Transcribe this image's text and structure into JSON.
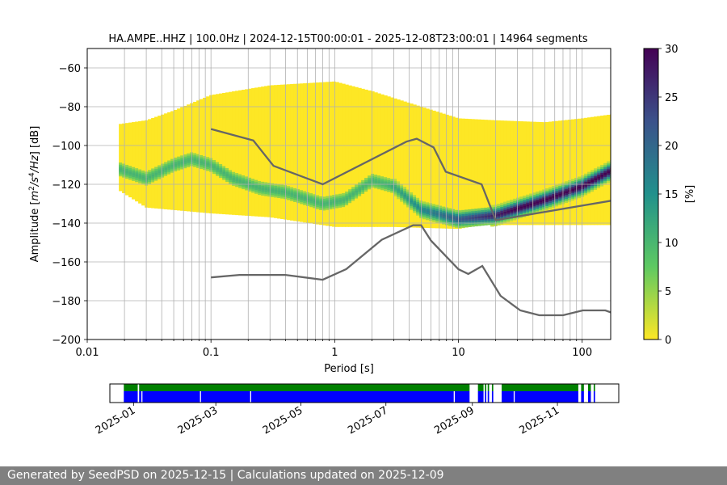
{
  "chart_data": {
    "type": "heatmap",
    "title": "HA.AMPE..HHZ | 100.0Hz | 2024-12-15T00:00:01 - 2025-12-08T23:00:01 | 14964 segments",
    "xlabel": "Period [s]",
    "ylabel": "Amplitude [m²/s⁴/Hz] [dB]",
    "xscale": "log",
    "xlim": [
      0.01,
      170
    ],
    "ylim": [
      -200,
      -50
    ],
    "xticks": [
      {
        "value": 0.01,
        "label": "0.01"
      },
      {
        "value": 0.1,
        "label": "0.1"
      },
      {
        "value": 1,
        "label": "1"
      },
      {
        "value": 10,
        "label": "10"
      },
      {
        "value": 100,
        "label": "100"
      }
    ],
    "yticks": [
      {
        "value": -60,
        "label": "−60"
      },
      {
        "value": -80,
        "label": "−80"
      },
      {
        "value": -100,
        "label": "−100"
      },
      {
        "value": -120,
        "label": "−120"
      },
      {
        "value": -140,
        "label": "−140"
      },
      {
        "value": -160,
        "label": "−160"
      },
      {
        "value": -180,
        "label": "−180"
      },
      {
        "value": -200,
        "label": "−200"
      }
    ],
    "grid": true,
    "heatmap": {
      "period_range": [
        0.018,
        170
      ],
      "band_top_db": [
        [
          0.018,
          -89
        ],
        [
          0.03,
          -87
        ],
        [
          0.05,
          -82
        ],
        [
          0.1,
          -74
        ],
        [
          0.3,
          -69
        ],
        [
          1,
          -67
        ],
        [
          2,
          -72
        ],
        [
          5,
          -80
        ],
        [
          10,
          -86
        ],
        [
          20,
          -87
        ],
        [
          50,
          -88
        ],
        [
          100,
          -86
        ],
        [
          170,
          -84
        ]
      ],
      "band_bottom_db": [
        [
          0.018,
          -123
        ],
        [
          0.03,
          -132
        ],
        [
          0.1,
          -135
        ],
        [
          0.3,
          -137
        ],
        [
          1,
          -142
        ],
        [
          3,
          -142
        ],
        [
          10,
          -143
        ],
        [
          15,
          -141
        ]
      ],
      "mode_db": [
        [
          0.018,
          -112
        ],
        [
          0.03,
          -117
        ],
        [
          0.05,
          -110
        ],
        [
          0.07,
          -107
        ],
        [
          0.1,
          -110
        ],
        [
          0.15,
          -117
        ],
        [
          0.25,
          -122
        ],
        [
          0.4,
          -124
        ],
        [
          0.8,
          -130
        ],
        [
          1.2,
          -128
        ],
        [
          2,
          -118
        ],
        [
          3,
          -121
        ],
        [
          5,
          -133
        ],
        [
          10,
          -138
        ],
        [
          20,
          -136
        ],
        [
          50,
          -128
        ],
        [
          100,
          -121
        ],
        [
          170,
          -113
        ]
      ]
    },
    "noise_models": [
      {
        "name": "NHNM",
        "points": [
          [
            0.1,
            -91.5
          ],
          [
            0.22,
            -97.4
          ],
          [
            0.32,
            -110.5
          ],
          [
            0.8,
            -120
          ],
          [
            3.8,
            -98
          ],
          [
            4.6,
            -96.5
          ],
          [
            6.3,
            -101
          ],
          [
            7.9,
            -113.5
          ],
          [
            15.4,
            -120
          ],
          [
            20,
            -138.5
          ],
          [
            170,
            -128.5
          ]
        ]
      },
      {
        "name": "NLNM",
        "points": [
          [
            0.1,
            -168
          ],
          [
            0.17,
            -166.7
          ],
          [
            0.4,
            -166.7
          ],
          [
            0.8,
            -169.2
          ],
          [
            1.24,
            -163.7
          ],
          [
            2.4,
            -148.6
          ],
          [
            4.3,
            -141.1
          ],
          [
            5,
            -141.1
          ],
          [
            6,
            -149
          ],
          [
            10,
            -163.8
          ],
          [
            12,
            -166.2
          ],
          [
            15.6,
            -162.1
          ],
          [
            21.9,
            -177.5
          ],
          [
            31.6,
            -185
          ],
          [
            45,
            -187.5
          ],
          [
            70,
            -187.5
          ],
          [
            101,
            -185
          ],
          [
            154,
            -185
          ],
          [
            170,
            -186
          ]
        ]
      }
    ],
    "colorbar": {
      "label": "[%]",
      "range": [
        0,
        30
      ],
      "ticks": [
        "0",
        "5",
        "10",
        "15",
        "20",
        "25",
        "30"
      ],
      "colors": [
        "#fde725",
        "#5ec962",
        "#21918c",
        "#3b528b",
        "#440154"
      ]
    },
    "availability": {
      "date_range": [
        "2024-12-15",
        "2025-12-15"
      ],
      "data_color": "#0000ff",
      "psd_color": "#008000",
      "segments": [
        [
          "2024-12-25",
          "2025-01-04"
        ],
        [
          "2025-01-05",
          "2025-08-30"
        ],
        [
          "2025-09-05",
          "2025-09-09"
        ],
        [
          "2025-09-10",
          "2025-09-11"
        ],
        [
          "2025-09-12",
          "2025-09-13"
        ],
        [
          "2025-09-15",
          "2025-09-16"
        ],
        [
          "2025-09-22",
          "2025-11-16"
        ],
        [
          "2025-11-18",
          "2025-11-20"
        ],
        [
          "2025-11-23",
          "2025-11-25"
        ],
        [
          "2025-11-27",
          "2025-11-28"
        ]
      ],
      "gaps": [
        "2025-01-07",
        "2025-02-18",
        "2025-03-26",
        "2025-08-19",
        "2025-10-01"
      ],
      "xticks": [
        {
          "date": "2025-01-01",
          "label": "2025-01"
        },
        {
          "date": "2025-03-01",
          "label": "2025-03"
        },
        {
          "date": "2025-05-01",
          "label": "2025-05"
        },
        {
          "date": "2025-07-01",
          "label": "2025-07"
        },
        {
          "date": "2025-09-01",
          "label": "2025-09"
        },
        {
          "date": "2025-11-01",
          "label": "2025-11"
        }
      ]
    }
  },
  "footer": {
    "text": "Generated by SeedPSD on 2025-12-15 | Calculations updated on 2025-12-09"
  }
}
